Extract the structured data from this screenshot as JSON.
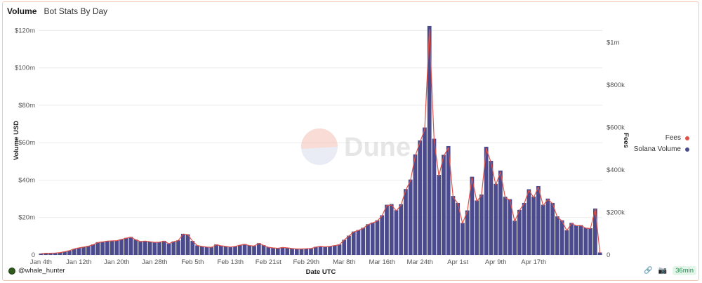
{
  "header": {
    "title": "Volume",
    "subtitle": "Bot Stats By Day"
  },
  "footer": {
    "user": "@whale_hunter",
    "refresh": "36min"
  },
  "colors": {
    "bar": "#4a4a8c",
    "line": "#e0524a",
    "grid": "#ececec",
    "text": "#555555"
  },
  "icons": {
    "link": "link-icon",
    "camera": "camera-icon"
  },
  "chart_data": {
    "type": "bar",
    "title": "Volume",
    "subtitle": "Bot Stats By Day",
    "xlabel": "Date UTC",
    "ylabel": "Volume USD",
    "y2label": "Fees",
    "ylim": [
      0,
      125
    ],
    "y2lim": [
      0,
      1100
    ],
    "y_ticks": [
      0,
      20,
      40,
      60,
      80,
      100,
      120
    ],
    "y_tick_labels": [
      "0",
      "$20m",
      "$40m",
      "$60m",
      "$80m",
      "$100m",
      "$120m"
    ],
    "y2_ticks": [
      0,
      200,
      400,
      600,
      800,
      1000
    ],
    "y2_tick_labels": [
      "0",
      "$200k",
      "$400k",
      "$600k",
      "$800k",
      "$1m"
    ],
    "x_tick_labels": [
      "Jan 4th",
      "Jan 12th",
      "Jan 20th",
      "Jan 28th",
      "Feb 5th",
      "Feb 13th",
      "Feb 21st",
      "Feb 29th",
      "Mar 8th",
      "Mar 16th",
      "Mar 24th",
      "Apr 1st",
      "Apr 9th",
      "Apr 17th"
    ],
    "x_start": "2024-01-04",
    "x_end": "2024-04-23",
    "legend": [
      "Fees",
      "Solana Volume"
    ],
    "legend_position": "right",
    "series": [
      {
        "name": "Solana Volume",
        "axis": "left",
        "values": [
          0.7,
          0.9,
          0.9,
          1.0,
          1.3,
          1.8,
          2.3,
          3.2,
          3.8,
          4.3,
          4.8,
          5.6,
          6.8,
          7.1,
          7.5,
          7.6,
          7.7,
          8.4,
          9.1,
          9.6,
          8.2,
          7.3,
          7.5,
          7.1,
          6.8,
          6.9,
          7.5,
          6.1,
          7.2,
          7.8,
          11.3,
          11.0,
          7.5,
          5.1,
          4.6,
          4.3,
          4.1,
          5.6,
          5.0,
          4.6,
          4.3,
          4.6,
          5.3,
          5.8,
          5.1,
          4.8,
          6.3,
          5.2,
          4.1,
          3.8,
          3.6,
          4.0,
          3.8,
          3.5,
          3.2,
          3.2,
          3.3,
          3.5,
          4.3,
          4.6,
          4.4,
          4.6,
          5.1,
          5.6,
          8.1,
          10.3,
          12.5,
          13.3,
          14.5,
          16.4,
          17.3,
          18.5,
          21.2,
          26.8,
          27.2,
          23.9,
          27.1,
          35.2,
          40.3,
          53.7,
          61.2,
          68.1,
          122.4,
          62.1,
          42.8,
          53.5,
          58.2,
          31.5,
          27.8,
          17.1,
          23.8,
          41.8,
          29.1,
          32.3,
          57.8,
          50.3,
          38.0,
          45.1,
          31.1,
          29.8,
          18.3,
          24.1,
          27.8,
          35.1,
          31.2,
          36.8,
          26.8,
          30.1,
          27.8,
          20.6,
          18.5,
          13.2,
          17.1,
          15.8,
          15.9,
          14.5,
          14.3,
          24.8,
          1.3
        ]
      },
      {
        "name": "Fees",
        "axis": "right",
        "values": [
          6,
          8,
          8,
          9,
          11,
          15,
          20,
          28,
          33,
          37,
          41,
          48,
          58,
          61,
          65,
          66,
          67,
          73,
          79,
          83,
          71,
          63,
          65,
          62,
          59,
          60,
          65,
          53,
          62,
          68,
          98,
          95,
          65,
          44,
          40,
          37,
          36,
          48,
          43,
          40,
          37,
          40,
          46,
          50,
          44,
          42,
          54,
          45,
          36,
          33,
          31,
          35,
          33,
          30,
          28,
          28,
          29,
          30,
          37,
          40,
          38,
          40,
          44,
          48,
          70,
          89,
          108,
          115,
          125,
          142,
          150,
          160,
          184,
          232,
          235,
          207,
          234,
          305,
          349,
          465,
          530,
          590,
          1060,
          538,
          371,
          463,
          504,
          273,
          241,
          148,
          206,
          362,
          252,
          280,
          500,
          435,
          329,
          390,
          269,
          258,
          158,
          209,
          241,
          304,
          270,
          319,
          232,
          261,
          241,
          178,
          160,
          114,
          148,
          137,
          138,
          126,
          124,
          215,
          11
        ]
      }
    ]
  }
}
